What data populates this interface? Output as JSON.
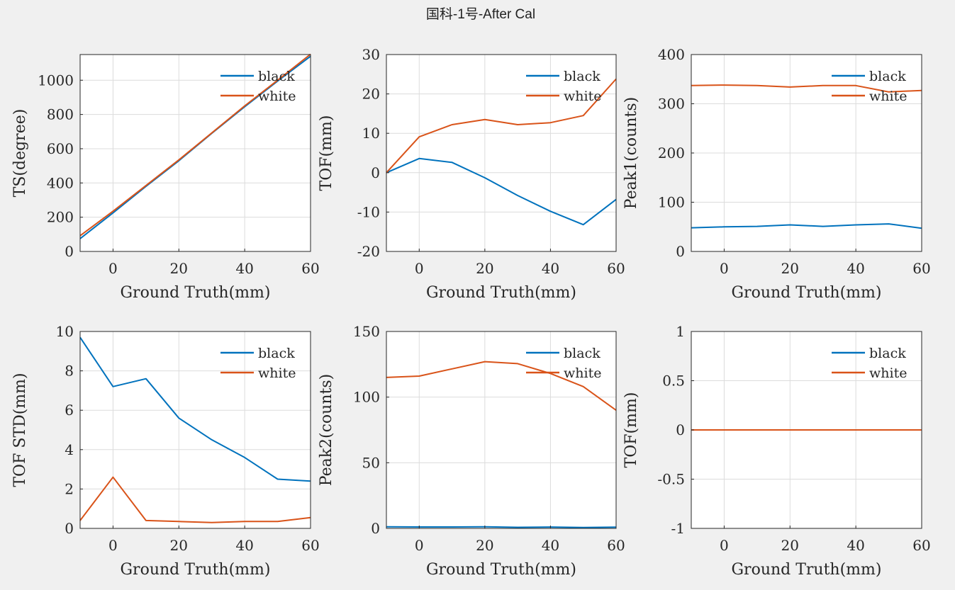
{
  "figure": {
    "title": "国科-1号-After Cal"
  },
  "colors": {
    "black": "#0072bd",
    "white": "#d95319"
  },
  "chart_data": [
    {
      "type": "line",
      "xlabel": "Ground Truth(mm)",
      "ylabel": "TS(degree)",
      "xlim": [
        -10,
        60
      ],
      "ylim": [
        0,
        1150
      ],
      "xticks": [
        0,
        20,
        40,
        60
      ],
      "yticks": [
        0,
        200,
        400,
        600,
        800,
        1000
      ],
      "legend": "top-right",
      "grid": true,
      "x": [
        -10,
        0,
        10,
        20,
        30,
        40,
        50,
        60
      ],
      "series": [
        {
          "name": "black",
          "color": "#0072bd",
          "values": [
            75,
            225,
            380,
            530,
            690,
            845,
            995,
            1140
          ]
        },
        {
          "name": "white",
          "color": "#d95319",
          "values": [
            92,
            235,
            385,
            535,
            692,
            850,
            1000,
            1152
          ]
        }
      ]
    },
    {
      "type": "line",
      "xlabel": "Ground Truth(mm)",
      "ylabel": "TOF(mm)",
      "xlim": [
        -10,
        60
      ],
      "ylim": [
        -20,
        30
      ],
      "xticks": [
        0,
        20,
        40,
        60
      ],
      "yticks": [
        -20,
        -10,
        0,
        10,
        20,
        30
      ],
      "legend": "top-right",
      "grid": true,
      "x": [
        -10,
        0,
        10,
        20,
        30,
        40,
        50,
        60
      ],
      "series": [
        {
          "name": "black",
          "color": "#0072bd",
          "values": [
            0,
            3.6,
            2.6,
            -1.3,
            -5.8,
            -9.8,
            -13.2,
            -6.8
          ]
        },
        {
          "name": "white",
          "color": "#d95319",
          "values": [
            0,
            9.1,
            12.2,
            13.5,
            12.2,
            12.7,
            14.5,
            23.8
          ]
        }
      ]
    },
    {
      "type": "line",
      "xlabel": "Ground Truth(mm)",
      "ylabel": "Peak1(counts)",
      "xlim": [
        -10,
        60
      ],
      "ylim": [
        0,
        400
      ],
      "xticks": [
        0,
        20,
        40,
        60
      ],
      "yticks": [
        0,
        100,
        200,
        300,
        400
      ],
      "legend": "top-right",
      "grid": true,
      "x": [
        -10,
        0,
        10,
        20,
        30,
        40,
        50,
        60
      ],
      "series": [
        {
          "name": "black",
          "color": "#0072bd",
          "values": [
            48,
            50,
            51,
            54,
            51,
            54,
            56,
            47
          ]
        },
        {
          "name": "white",
          "color": "#d95319",
          "values": [
            337,
            338,
            337,
            334,
            337,
            337,
            324,
            327
          ]
        }
      ]
    },
    {
      "type": "line",
      "xlabel": "Ground Truth(mm)",
      "ylabel": "TOF STD(mm)",
      "xlim": [
        -10,
        60
      ],
      "ylim": [
        0,
        10
      ],
      "xticks": [
        0,
        20,
        40,
        60
      ],
      "yticks": [
        0,
        2,
        4,
        6,
        8,
        10
      ],
      "legend": "top-right",
      "grid": true,
      "x": [
        -10,
        0,
        10,
        20,
        30,
        40,
        50,
        60
      ],
      "series": [
        {
          "name": "black",
          "color": "#0072bd",
          "values": [
            9.7,
            7.2,
            7.6,
            5.6,
            4.5,
            3.6,
            2.5,
            2.4
          ]
        },
        {
          "name": "white",
          "color": "#d95319",
          "values": [
            0.4,
            2.6,
            0.4,
            0.35,
            0.3,
            0.35,
            0.35,
            0.55
          ]
        }
      ]
    },
    {
      "type": "line",
      "xlabel": "Ground Truth(mm)",
      "ylabel": "Peak2(counts)",
      "xlim": [
        -10,
        60
      ],
      "ylim": [
        0,
        150
      ],
      "xticks": [
        0,
        20,
        40,
        60
      ],
      "yticks": [
        0,
        50,
        100,
        150
      ],
      "legend": "top-right",
      "grid": true,
      "x": [
        -10,
        0,
        10,
        20,
        30,
        40,
        50,
        60
      ],
      "series": [
        {
          "name": "black",
          "color": "#0072bd",
          "values": [
            1.2,
            1.1,
            1.1,
            1.2,
            0.8,
            1.0,
            0.7,
            0.9
          ]
        },
        {
          "name": "white",
          "color": "#d95319",
          "values": [
            115,
            116,
            121.5,
            127,
            125.5,
            118,
            108,
            90
          ]
        }
      ]
    },
    {
      "type": "line",
      "xlabel": "Ground Truth(mm)",
      "ylabel": "TOF(mm)",
      "xlim": [
        -10,
        60
      ],
      "ylim": [
        -1,
        1
      ],
      "xticks": [
        0,
        20,
        40,
        60
      ],
      "yticks": [
        -1,
        -0.5,
        0,
        0.5,
        1
      ],
      "legend": "top-right",
      "grid": true,
      "x": [
        -10,
        0,
        10,
        20,
        30,
        40,
        50,
        60
      ],
      "series": [
        {
          "name": "black",
          "color": "#0072bd",
          "values": [
            0,
            0,
            0,
            0,
            0,
            0,
            0,
            0
          ]
        },
        {
          "name": "white",
          "color": "#d95319",
          "values": [
            0,
            0,
            0,
            0,
            0,
            0,
            0,
            0
          ]
        }
      ]
    }
  ]
}
